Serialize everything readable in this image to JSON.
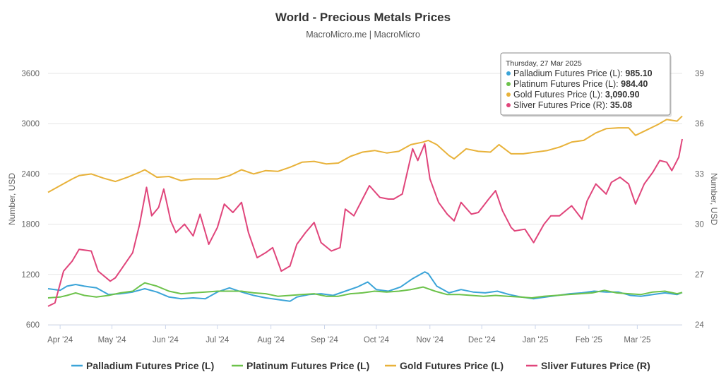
{
  "chart_data": {
    "type": "line",
    "title": "World - Precious Metals Prices",
    "subtitle": "MacroMicro.me | MacroMicro",
    "ylabel_left": "Number, USD",
    "ylabel_right": "Number, USD",
    "y_left_range": [
      600,
      3600
    ],
    "y_left_ticks": [
      "600",
      "1200",
      "1800",
      "2400",
      "3000",
      "3600"
    ],
    "y_right_range": [
      24,
      39
    ],
    "y_right_ticks": [
      "24",
      "27",
      "30",
      "33",
      "36",
      "39"
    ],
    "x_range": [
      "2024-03-25",
      "2025-03-27"
    ],
    "x_ticks": [
      {
        "date": "2024-04-01",
        "label": "Apr '24"
      },
      {
        "date": "2024-05-01",
        "label": "May '24"
      },
      {
        "date": "2024-06-01",
        "label": "Jun '24"
      },
      {
        "date": "2024-07-01",
        "label": "Jul '24"
      },
      {
        "date": "2024-08-01",
        "label": "Aug '24"
      },
      {
        "date": "2024-09-01",
        "label": "Sep '24"
      },
      {
        "date": "2024-10-01",
        "label": "Oct '24"
      },
      {
        "date": "2024-11-01",
        "label": "Nov '24"
      },
      {
        "date": "2024-12-01",
        "label": "Dec '24"
      },
      {
        "date": "2025-01-01",
        "label": "Jan '25"
      },
      {
        "date": "2025-02-01",
        "label": "Feb '25"
      },
      {
        "date": "2025-03-01",
        "label": "Mar '25"
      }
    ],
    "grid": true,
    "legend_position": "bottom",
    "series": [
      {
        "name": "Palladium Futures Price (L)",
        "axis": "left",
        "color": "#3ba4d8",
        "points": [
          [
            "2024-03-25",
            1030
          ],
          [
            "2024-04-01",
            1010
          ],
          [
            "2024-04-05",
            1060
          ],
          [
            "2024-04-10",
            1080
          ],
          [
            "2024-04-15",
            1060
          ],
          [
            "2024-04-22",
            1040
          ],
          [
            "2024-04-29",
            960
          ],
          [
            "2024-05-06",
            970
          ],
          [
            "2024-05-13",
            990
          ],
          [
            "2024-05-20",
            1030
          ],
          [
            "2024-05-27",
            990
          ],
          [
            "2024-06-03",
            930
          ],
          [
            "2024-06-10",
            910
          ],
          [
            "2024-06-17",
            920
          ],
          [
            "2024-06-24",
            910
          ],
          [
            "2024-07-01",
            990
          ],
          [
            "2024-07-08",
            1040
          ],
          [
            "2024-07-15",
            990
          ],
          [
            "2024-07-22",
            950
          ],
          [
            "2024-07-29",
            920
          ],
          [
            "2024-08-05",
            900
          ],
          [
            "2024-08-12",
            880
          ],
          [
            "2024-08-16",
            930
          ],
          [
            "2024-08-23",
            960
          ],
          [
            "2024-08-30",
            970
          ],
          [
            "2024-09-06",
            950
          ],
          [
            "2024-09-13",
            1000
          ],
          [
            "2024-09-20",
            1050
          ],
          [
            "2024-09-26",
            1110
          ],
          [
            "2024-10-01",
            1020
          ],
          [
            "2024-10-08",
            1000
          ],
          [
            "2024-10-15",
            1050
          ],
          [
            "2024-10-22",
            1150
          ],
          [
            "2024-10-29",
            1230
          ],
          [
            "2024-10-31",
            1210
          ],
          [
            "2024-11-05",
            1060
          ],
          [
            "2024-11-12",
            980
          ],
          [
            "2024-11-19",
            1020
          ],
          [
            "2024-11-26",
            990
          ],
          [
            "2024-12-03",
            980
          ],
          [
            "2024-12-10",
            1000
          ],
          [
            "2024-12-17",
            960
          ],
          [
            "2024-12-24",
            930
          ],
          [
            "2024-12-31",
            910
          ],
          [
            "2025-01-07",
            930
          ],
          [
            "2025-01-14",
            950
          ],
          [
            "2025-01-21",
            970
          ],
          [
            "2025-01-28",
            980
          ],
          [
            "2025-02-04",
            1000
          ],
          [
            "2025-02-11",
            990
          ],
          [
            "2025-02-18",
            990
          ],
          [
            "2025-02-25",
            950
          ],
          [
            "2025-03-03",
            940
          ],
          [
            "2025-03-10",
            960
          ],
          [
            "2025-03-17",
            980
          ],
          [
            "2025-03-24",
            960
          ],
          [
            "2025-03-27",
            985.1
          ]
        ]
      },
      {
        "name": "Platinum Futures Price (L)",
        "axis": "left",
        "color": "#6cc24a",
        "points": [
          [
            "2024-03-25",
            920
          ],
          [
            "2024-04-01",
            930
          ],
          [
            "2024-04-05",
            950
          ],
          [
            "2024-04-10",
            980
          ],
          [
            "2024-04-15",
            950
          ],
          [
            "2024-04-22",
            930
          ],
          [
            "2024-04-29",
            950
          ],
          [
            "2024-05-06",
            980
          ],
          [
            "2024-05-13",
            1000
          ],
          [
            "2024-05-17",
            1060
          ],
          [
            "2024-05-20",
            1100
          ],
          [
            "2024-05-27",
            1060
          ],
          [
            "2024-06-03",
            1000
          ],
          [
            "2024-06-10",
            970
          ],
          [
            "2024-06-17",
            980
          ],
          [
            "2024-06-24",
            990
          ],
          [
            "2024-07-01",
            1000
          ],
          [
            "2024-07-08",
            1000
          ],
          [
            "2024-07-15",
            1000
          ],
          [
            "2024-07-22",
            980
          ],
          [
            "2024-07-29",
            970
          ],
          [
            "2024-08-05",
            940
          ],
          [
            "2024-08-12",
            950
          ],
          [
            "2024-08-19",
            960
          ],
          [
            "2024-08-26",
            970
          ],
          [
            "2024-09-02",
            940
          ],
          [
            "2024-09-09",
            940
          ],
          [
            "2024-09-16",
            970
          ],
          [
            "2024-09-23",
            980
          ],
          [
            "2024-09-30",
            1000
          ],
          [
            "2024-10-07",
            990
          ],
          [
            "2024-10-14",
            1000
          ],
          [
            "2024-10-21",
            1020
          ],
          [
            "2024-10-28",
            1050
          ],
          [
            "2024-11-04",
            1000
          ],
          [
            "2024-11-11",
            960
          ],
          [
            "2024-11-18",
            960
          ],
          [
            "2024-11-25",
            950
          ],
          [
            "2024-12-02",
            940
          ],
          [
            "2024-12-09",
            950
          ],
          [
            "2024-12-16",
            940
          ],
          [
            "2024-12-23",
            930
          ],
          [
            "2024-12-30",
            920
          ],
          [
            "2025-01-06",
            940
          ],
          [
            "2025-01-13",
            950
          ],
          [
            "2025-01-20",
            960
          ],
          [
            "2025-01-27",
            970
          ],
          [
            "2025-02-03",
            980
          ],
          [
            "2025-02-10",
            1010
          ],
          [
            "2025-02-17",
            980
          ],
          [
            "2025-02-24",
            970
          ],
          [
            "2025-03-03",
            960
          ],
          [
            "2025-03-10",
            990
          ],
          [
            "2025-03-17",
            1000
          ],
          [
            "2025-03-24",
            970
          ],
          [
            "2025-03-27",
            984.4
          ]
        ]
      },
      {
        "name": "Gold Futures Price (L)",
        "axis": "left",
        "color": "#e8b23a",
        "points": [
          [
            "2024-03-25",
            2180
          ],
          [
            "2024-04-01",
            2260
          ],
          [
            "2024-04-08",
            2340
          ],
          [
            "2024-04-12",
            2380
          ],
          [
            "2024-04-19",
            2400
          ],
          [
            "2024-04-26",
            2350
          ],
          [
            "2024-05-03",
            2310
          ],
          [
            "2024-05-10",
            2360
          ],
          [
            "2024-05-17",
            2420
          ],
          [
            "2024-05-20",
            2450
          ],
          [
            "2024-05-27",
            2360
          ],
          [
            "2024-06-03",
            2370
          ],
          [
            "2024-06-10",
            2320
          ],
          [
            "2024-06-17",
            2340
          ],
          [
            "2024-06-24",
            2340
          ],
          [
            "2024-07-01",
            2340
          ],
          [
            "2024-07-08",
            2380
          ],
          [
            "2024-07-15",
            2450
          ],
          [
            "2024-07-22",
            2400
          ],
          [
            "2024-07-29",
            2440
          ],
          [
            "2024-08-05",
            2430
          ],
          [
            "2024-08-12",
            2480
          ],
          [
            "2024-08-19",
            2540
          ],
          [
            "2024-08-26",
            2550
          ],
          [
            "2024-09-02",
            2520
          ],
          [
            "2024-09-09",
            2530
          ],
          [
            "2024-09-16",
            2610
          ],
          [
            "2024-09-23",
            2660
          ],
          [
            "2024-09-30",
            2680
          ],
          [
            "2024-10-07",
            2650
          ],
          [
            "2024-10-14",
            2670
          ],
          [
            "2024-10-21",
            2750
          ],
          [
            "2024-10-28",
            2780
          ],
          [
            "2024-10-31",
            2800
          ],
          [
            "2024-11-05",
            2750
          ],
          [
            "2024-11-12",
            2620
          ],
          [
            "2024-11-15",
            2580
          ],
          [
            "2024-11-22",
            2700
          ],
          [
            "2024-11-29",
            2670
          ],
          [
            "2024-12-06",
            2660
          ],
          [
            "2024-12-11",
            2750
          ],
          [
            "2024-12-18",
            2640
          ],
          [
            "2024-12-25",
            2640
          ],
          [
            "2025-01-01",
            2660
          ],
          [
            "2025-01-08",
            2680
          ],
          [
            "2025-01-15",
            2720
          ],
          [
            "2025-01-22",
            2780
          ],
          [
            "2025-01-29",
            2800
          ],
          [
            "2025-02-05",
            2890
          ],
          [
            "2025-02-11",
            2940
          ],
          [
            "2025-02-18",
            2950
          ],
          [
            "2025-02-24",
            2950
          ],
          [
            "2025-02-28",
            2860
          ],
          [
            "2025-03-06",
            2920
          ],
          [
            "2025-03-13",
            2990
          ],
          [
            "2025-03-18",
            3050
          ],
          [
            "2025-03-24",
            3030
          ],
          [
            "2025-03-27",
            3090.9
          ]
        ]
      },
      {
        "name": "Sliver Futures Price (R)",
        "axis": "right",
        "color": "#e0457b",
        "points": [
          [
            "2024-03-25",
            25.1
          ],
          [
            "2024-03-29",
            25.3
          ],
          [
            "2024-04-03",
            27.2
          ],
          [
            "2024-04-08",
            27.8
          ],
          [
            "2024-04-12",
            28.5
          ],
          [
            "2024-04-19",
            28.4
          ],
          [
            "2024-04-23",
            27.2
          ],
          [
            "2024-04-30",
            26.6
          ],
          [
            "2024-05-03",
            26.8
          ],
          [
            "2024-05-07",
            27.4
          ],
          [
            "2024-05-13",
            28.3
          ],
          [
            "2024-05-17",
            30.0
          ],
          [
            "2024-05-21",
            32.2
          ],
          [
            "2024-05-24",
            30.5
          ],
          [
            "2024-05-28",
            31.0
          ],
          [
            "2024-05-31",
            32.1
          ],
          [
            "2024-06-04",
            30.2
          ],
          [
            "2024-06-07",
            29.5
          ],
          [
            "2024-06-12",
            30.0
          ],
          [
            "2024-06-17",
            29.3
          ],
          [
            "2024-06-21",
            30.6
          ],
          [
            "2024-06-26",
            28.8
          ],
          [
            "2024-07-01",
            29.8
          ],
          [
            "2024-07-05",
            31.2
          ],
          [
            "2024-07-10",
            30.7
          ],
          [
            "2024-07-15",
            31.3
          ],
          [
            "2024-07-19",
            29.5
          ],
          [
            "2024-07-24",
            28.0
          ],
          [
            "2024-07-29",
            28.3
          ],
          [
            "2024-08-02",
            28.6
          ],
          [
            "2024-08-07",
            27.2
          ],
          [
            "2024-08-12",
            27.5
          ],
          [
            "2024-08-16",
            28.8
          ],
          [
            "2024-08-21",
            29.5
          ],
          [
            "2024-08-26",
            30.1
          ],
          [
            "2024-08-30",
            28.9
          ],
          [
            "2024-09-05",
            28.4
          ],
          [
            "2024-09-10",
            28.6
          ],
          [
            "2024-09-13",
            30.9
          ],
          [
            "2024-09-18",
            30.5
          ],
          [
            "2024-09-23",
            31.5
          ],
          [
            "2024-09-27",
            32.3
          ],
          [
            "2024-10-03",
            31.6
          ],
          [
            "2024-10-08",
            31.5
          ],
          [
            "2024-10-11",
            31.5
          ],
          [
            "2024-10-16",
            31.8
          ],
          [
            "2024-10-22",
            34.5
          ],
          [
            "2024-10-25",
            33.8
          ],
          [
            "2024-10-29",
            34.8
          ],
          [
            "2024-11-01",
            32.7
          ],
          [
            "2024-11-06",
            31.3
          ],
          [
            "2024-11-11",
            30.6
          ],
          [
            "2024-11-15",
            30.2
          ],
          [
            "2024-11-19",
            31.3
          ],
          [
            "2024-11-25",
            30.6
          ],
          [
            "2024-11-29",
            30.7
          ],
          [
            "2024-12-05",
            31.5
          ],
          [
            "2024-12-09",
            32.0
          ],
          [
            "2024-12-13",
            30.8
          ],
          [
            "2024-12-18",
            29.8
          ],
          [
            "2024-12-20",
            29.6
          ],
          [
            "2024-12-26",
            29.7
          ],
          [
            "2024-12-31",
            28.9
          ],
          [
            "2025-01-06",
            30.0
          ],
          [
            "2025-01-10",
            30.5
          ],
          [
            "2025-01-15",
            30.5
          ],
          [
            "2025-01-22",
            31.1
          ],
          [
            "2025-01-28",
            30.3
          ],
          [
            "2025-01-31",
            31.4
          ],
          [
            "2025-02-05",
            32.4
          ],
          [
            "2025-02-11",
            31.8
          ],
          [
            "2025-02-14",
            32.5
          ],
          [
            "2025-02-19",
            32.8
          ],
          [
            "2025-02-24",
            32.4
          ],
          [
            "2025-02-28",
            31.2
          ],
          [
            "2025-03-05",
            32.4
          ],
          [
            "2025-03-10",
            33.1
          ],
          [
            "2025-03-14",
            33.8
          ],
          [
            "2025-03-18",
            33.7
          ],
          [
            "2025-03-21",
            33.2
          ],
          [
            "2025-03-25",
            34.0
          ],
          [
            "2025-03-27",
            35.08
          ]
        ]
      }
    ],
    "tooltip": {
      "date": "Thursday, 27 Mar 2025",
      "entries": [
        {
          "label": "Palladium Futures Price (L): ",
          "value": "985.10",
          "color": "#3ba4d8"
        },
        {
          "label": "Platinum Futures Price (L): ",
          "value": "984.40",
          "color": "#6cc24a"
        },
        {
          "label": "Gold Futures Price (L): ",
          "value": "3,090.90",
          "color": "#e8b23a"
        },
        {
          "label": "Sliver Futures Price (R): ",
          "value": "35.08",
          "color": "#e0457b"
        }
      ]
    }
  }
}
